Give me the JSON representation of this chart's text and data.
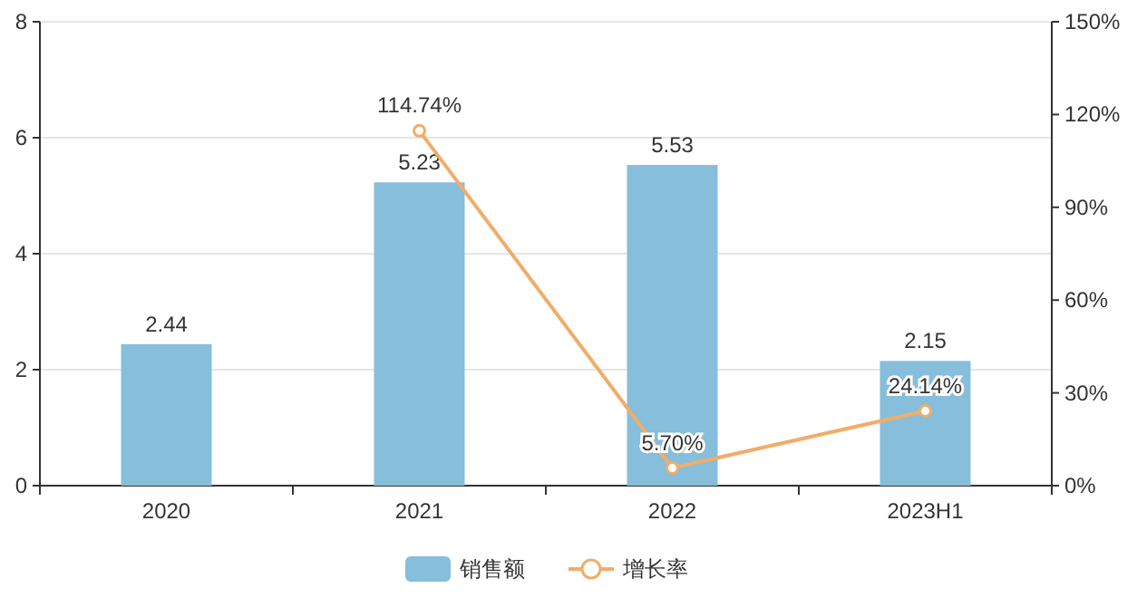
{
  "chart_data": {
    "type": "bar",
    "categories": [
      "2020",
      "2021",
      "2022",
      "2023H1"
    ],
    "series": [
      {
        "name": "销售额",
        "color": "#86bedb",
        "values": [
          2.44,
          5.23,
          5.53,
          2.15
        ]
      },
      {
        "name": "增长率",
        "type": "line",
        "axis": "y2",
        "color": "#f0ad6a",
        "values": [
          null,
          114.74,
          5.7,
          24.14
        ],
        "value_labels": [
          null,
          "114.74%",
          "5.70%",
          "24.14%"
        ]
      }
    ],
    "ylim": [
      0,
      8
    ],
    "yticks": [
      0,
      2,
      4,
      6,
      8
    ],
    "y2lim": [
      0,
      150
    ],
    "y2ticks": [
      {
        "value": 0,
        "label": "0%"
      },
      {
        "value": 30,
        "label": "30%"
      },
      {
        "value": 60,
        "label": "60%"
      },
      {
        "value": 90,
        "label": "90%"
      },
      {
        "value": 120,
        "label": "120%"
      },
      {
        "value": 150,
        "label": "150%"
      }
    ],
    "data_labels": true,
    "grid": "y",
    "legend": "bottom",
    "marker": "circle",
    "line_style": "solid"
  }
}
